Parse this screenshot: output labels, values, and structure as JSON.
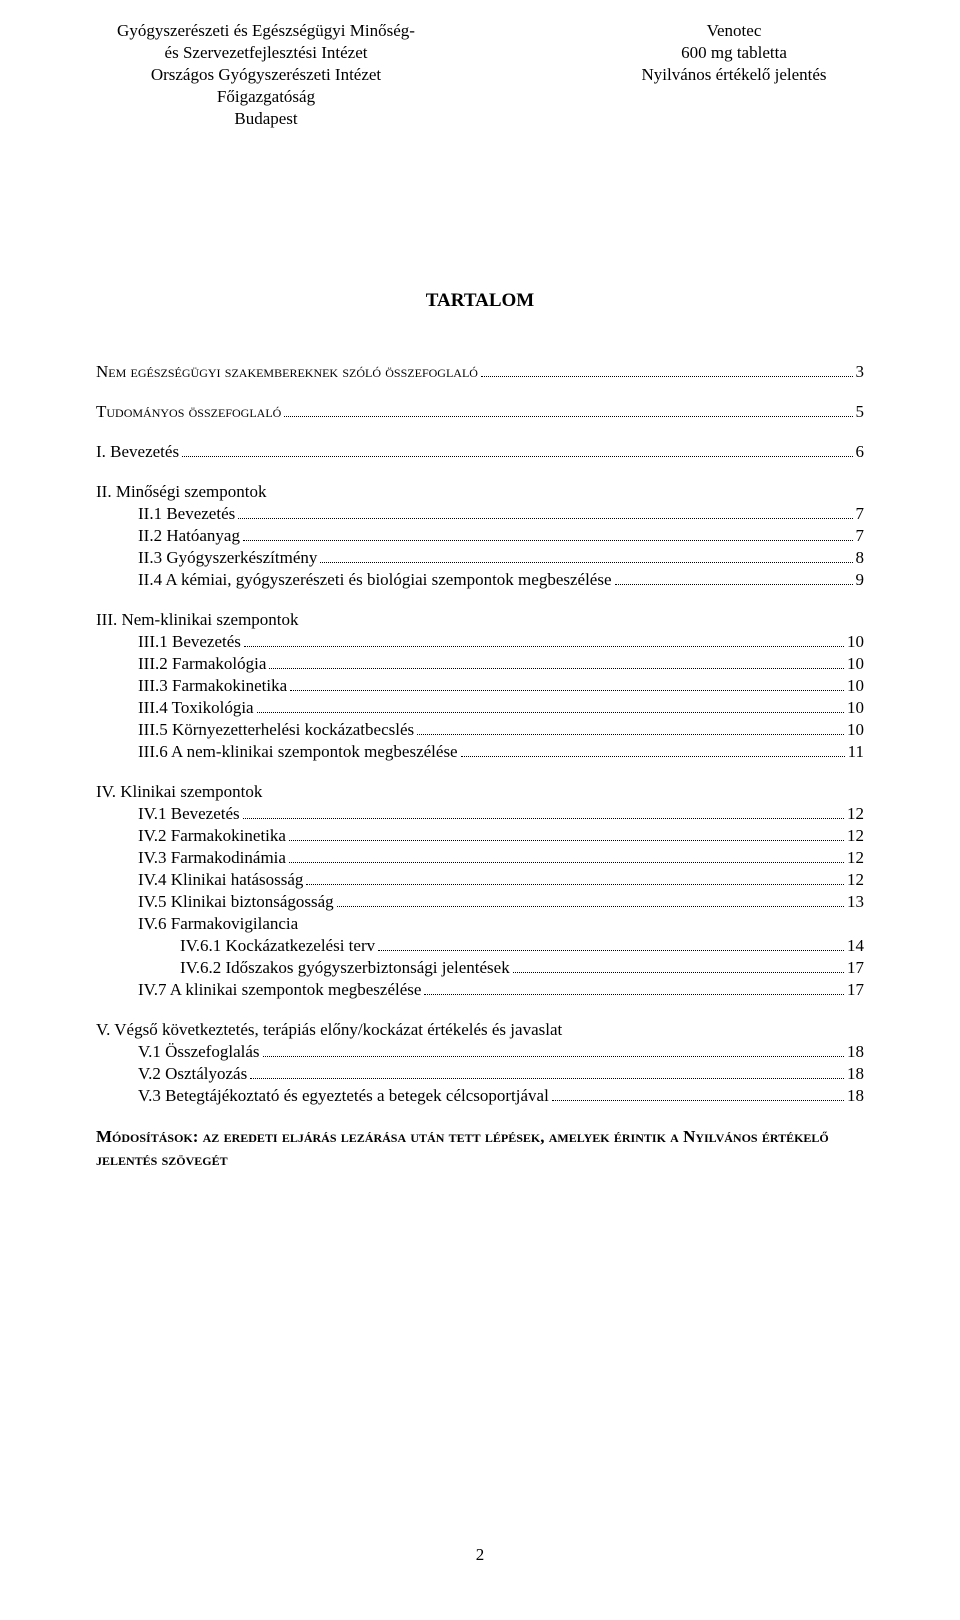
{
  "header": {
    "left_lines": [
      "Gyógyszerészeti és Egészségügyi Minőség-",
      "és Szervezetfejlesztési Intézet",
      "Országos Gyógyszerészeti Intézet",
      "Főigazgatóság",
      "Budapest"
    ],
    "right_lines": [
      "Venotec",
      "600 mg tabletta",
      "Nyilvános értékelő jelentés"
    ]
  },
  "title": "TARTALOM",
  "toc_top": [
    {
      "label": "Nem egészségügyi szakembereknek szóló összefoglaló",
      "page": "3",
      "sc": true
    },
    {
      "label": "Tudományos összefoglaló",
      "page": "5",
      "sc": true
    }
  ],
  "sections": [
    {
      "head": null,
      "items": [
        {
          "label": "I. Bevezetés",
          "page": "6",
          "indent": 0
        }
      ]
    },
    {
      "head": "II. Minőségi szempontok",
      "items": [
        {
          "label": "II.1 Bevezetés",
          "page": "7",
          "indent": 1
        },
        {
          "label": "II.2 Hatóanyag",
          "page": "7",
          "indent": 1
        },
        {
          "label": "II.3 Gyógyszerkészítmény",
          "page": "8",
          "indent": 1
        },
        {
          "label": "II.4 A kémiai, gyógyszerészeti és biológiai szempontok megbeszélése",
          "page": "9",
          "indent": 1
        }
      ]
    },
    {
      "head": "III. Nem-klinikai szempontok",
      "items": [
        {
          "label": "III.1 Bevezetés",
          "page": "10",
          "indent": 1
        },
        {
          "label": "III.2 Farmakológia",
          "page": "10",
          "indent": 1
        },
        {
          "label": "III.3 Farmakokinetika",
          "page": "10",
          "indent": 1
        },
        {
          "label": "III.4 Toxikológia",
          "page": "10",
          "indent": 1
        },
        {
          "label": "III.5 Környezetterhelési kockázatbecslés",
          "page": "10",
          "indent": 1
        },
        {
          "label": "III.6 A nem-klinikai szempontok megbeszélése",
          "page": "11",
          "indent": 1
        }
      ]
    },
    {
      "head": "IV. Klinikai szempontok",
      "items": [
        {
          "label": "IV.1 Bevezetés",
          "page": "12",
          "indent": 1
        },
        {
          "label": "IV.2 Farmakokinetika",
          "page": "12",
          "indent": 1
        },
        {
          "label": "IV.3 Farmakodinámia",
          "page": "12",
          "indent": 1
        },
        {
          "label": "IV.4 Klinikai hatásosság",
          "page": "12",
          "indent": 1
        },
        {
          "label": "IV.5 Klinikai biztonságosság",
          "page": "13",
          "indent": 1
        },
        {
          "label": "IV.6 Farmakovigilancia",
          "page": null,
          "indent": 1
        },
        {
          "label": "IV.6.1 Kockázatkezelési terv",
          "page": "14",
          "indent": 2
        },
        {
          "label": "IV.6.2 Időszakos gyógyszerbiztonsági jelentések",
          "page": "17",
          "indent": 2
        },
        {
          "label": "IV.7 A klinikai szempontok megbeszélése",
          "page": "17",
          "indent": 1
        }
      ]
    },
    {
      "head": "V. Végső következtetés, terápiás előny/kockázat értékelés és javaslat",
      "items": [
        {
          "label": "V.1 Összefoglalás",
          "page": "18",
          "indent": 1
        },
        {
          "label": "V.2 Osztályozás",
          "page": "18",
          "indent": 1
        },
        {
          "label": "V.3 Betegtájékoztató és egyeztetés a betegek célcsoportjával",
          "page": "18",
          "indent": 1
        }
      ]
    }
  ],
  "footer_caps": "Módosítások: az eredeti eljárás lezárása után tett lépések, amelyek érintik a Nyilvános értékelő jelentés szövegét",
  "page_number": "2"
}
